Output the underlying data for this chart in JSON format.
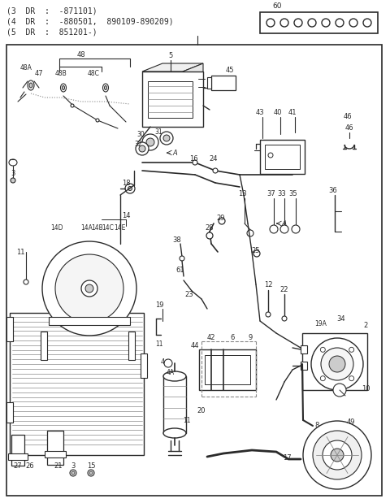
{
  "bg_color": "#ffffff",
  "line_color": "#2a2a2a",
  "gray_color": "#888888",
  "light_gray": "#cccccc",
  "header_lines": [
    "(3  DR  :  -871101)",
    "(4  DR  :  -880501,  890109-890209)",
    "(5  DR  :  851201-)"
  ],
  "fig_width": 4.8,
  "fig_height": 6.19,
  "dpi": 100
}
